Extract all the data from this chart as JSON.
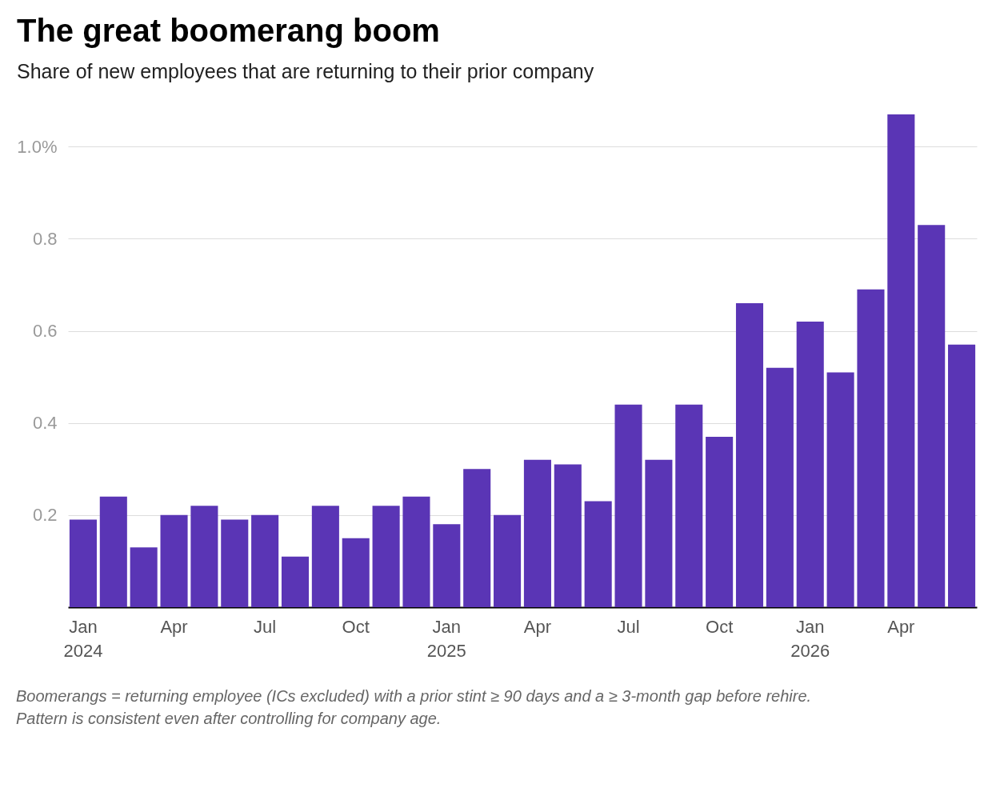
{
  "chart_data": {
    "type": "bar",
    "title": "The great boomerang boom",
    "subtitle": "Share of new employees that are returning to their prior company",
    "categories": [
      "Jan 2024",
      null,
      null,
      "Apr",
      null,
      null,
      "Jul",
      null,
      null,
      "Oct",
      null,
      null,
      "Jan 2025",
      null,
      null,
      "Apr",
      null,
      null,
      "Jul",
      null,
      null,
      "Oct",
      null,
      null,
      "Jan 2026",
      null,
      null,
      "Apr",
      null,
      null
    ],
    "values": [
      0.19,
      0.24,
      0.13,
      0.2,
      0.22,
      0.19,
      0.2,
      0.11,
      0.22,
      0.15,
      0.22,
      0.24,
      0.18,
      0.3,
      0.2,
      0.32,
      0.31,
      0.23,
      0.44,
      0.32,
      0.44,
      0.37,
      0.66,
      0.52,
      0.62,
      0.51,
      0.69,
      1.07,
      0.83,
      0.57
    ],
    "color": "#5a35b5",
    "ylim": [
      0,
      1.07
    ],
    "yticks": [
      0.2,
      0.4,
      0.6,
      0.8,
      {
        "value": 1,
        "label": "1.0%"
      }
    ],
    "grid": "y",
    "annotations": [
      "Boomerangs = returning employee (ICs excluded) with a prior stint ≥ 90 days and a ≥ 3-month gap before rehire.",
      "Pattern is consistent even after controlling for company age."
    ]
  }
}
